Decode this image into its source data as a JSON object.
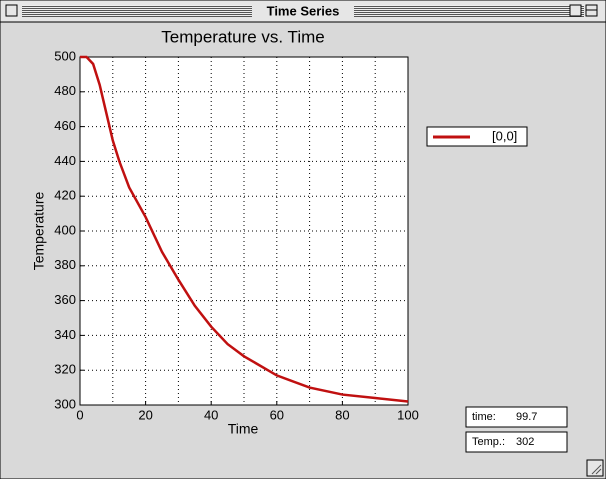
{
  "window": {
    "title": "Time Series"
  },
  "chart_data": {
    "type": "line",
    "title": "Temperature vs. Time",
    "x_label": "Time",
    "y_label": "Temperature",
    "x": [
      0,
      2,
      4,
      6,
      8,
      10,
      12,
      15,
      20,
      25,
      30,
      35,
      40,
      45,
      50,
      60,
      70,
      80,
      90,
      100
    ],
    "series": [
      {
        "name": "[0,0]",
        "color": "#c01010",
        "values": [
          500,
          500,
          496,
          484,
          468,
          452,
          440,
          425,
          408,
          388,
          372,
          357,
          345,
          335,
          328,
          317,
          310,
          306,
          304,
          302
        ]
      }
    ],
    "xlim": [
      0,
      100
    ],
    "xticks": [
      0,
      20,
      40,
      60,
      80,
      100
    ],
    "xminor": [
      10,
      30,
      50,
      70,
      90
    ],
    "ylim": [
      300,
      500
    ],
    "yticks": [
      300,
      320,
      340,
      360,
      380,
      400,
      420,
      440,
      460,
      480,
      500
    ],
    "grid": true,
    "legend": "right"
  },
  "readouts": [
    {
      "label": "time:",
      "value": "99.7"
    },
    {
      "label": "Temp.:",
      "value": "302"
    }
  ]
}
